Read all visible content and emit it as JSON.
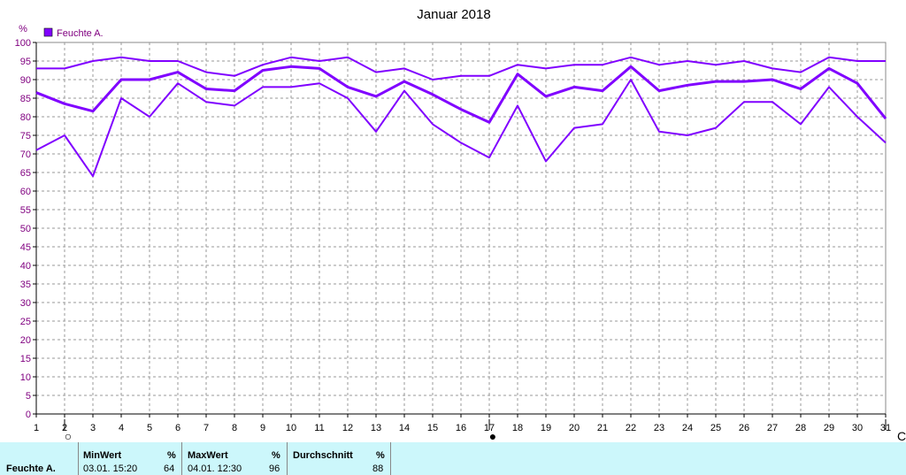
{
  "chart_data": {
    "type": "line",
    "title": "Januar 2018",
    "y_unit": "%",
    "ylim": [
      0,
      100
    ],
    "y_ticks": [
      0,
      5,
      10,
      15,
      20,
      25,
      30,
      35,
      40,
      45,
      50,
      55,
      60,
      65,
      70,
      75,
      80,
      85,
      90,
      95,
      100
    ],
    "x": [
      1,
      2,
      3,
      4,
      5,
      6,
      7,
      8,
      9,
      10,
      11,
      12,
      13,
      14,
      15,
      16,
      17,
      18,
      19,
      20,
      21,
      22,
      23,
      24,
      25,
      26,
      27,
      28,
      29,
      30,
      31
    ],
    "legend": {
      "label": "Feuchte A.",
      "color": "#8000ff",
      "placement": "top-left"
    },
    "grid": true,
    "series": [
      {
        "role": "max",
        "values": [
          93,
          93,
          95,
          96,
          95,
          95,
          92,
          91,
          94,
          96,
          95,
          96,
          92,
          93,
          90,
          91,
          91,
          94,
          93,
          94,
          94,
          96,
          94,
          95,
          94,
          95,
          93,
          92,
          96,
          95,
          95
        ]
      },
      {
        "role": "avg",
        "values": [
          86.5,
          83.5,
          81.5,
          90,
          90,
          92,
          87.5,
          87,
          92.5,
          93.5,
          93,
          88,
          85.5,
          89.5,
          86,
          82,
          78.5,
          91.5,
          85.5,
          88,
          87,
          93.5,
          87,
          88.5,
          89.5,
          89.5,
          90,
          87.5,
          93,
          89,
          79.5
        ]
      },
      {
        "role": "min",
        "values": [
          71,
          75,
          64,
          85,
          80,
          89,
          84,
          83,
          88,
          88,
          89,
          85,
          76,
          87,
          78,
          73,
          69,
          83,
          68,
          77,
          78,
          90,
          76,
          75,
          77,
          84,
          84,
          78,
          88,
          80,
          73
        ]
      }
    ],
    "moon_markers": [
      {
        "day": 2,
        "symbol": "○"
      },
      {
        "day": 17,
        "symbol": "●"
      },
      {
        "day": 31,
        "symbol": "C"
      }
    ]
  },
  "summary": {
    "row_label": "Feuchte A.",
    "min": {
      "header": "MinWert",
      "unit": "%",
      "time": "03.01.  15:20",
      "value": "64"
    },
    "max": {
      "header": "MaxWert",
      "unit": "%",
      "time": "04.01.  12:30",
      "value": "96"
    },
    "avg": {
      "header": "Durchschnitt",
      "unit": "%",
      "value": "88"
    }
  }
}
